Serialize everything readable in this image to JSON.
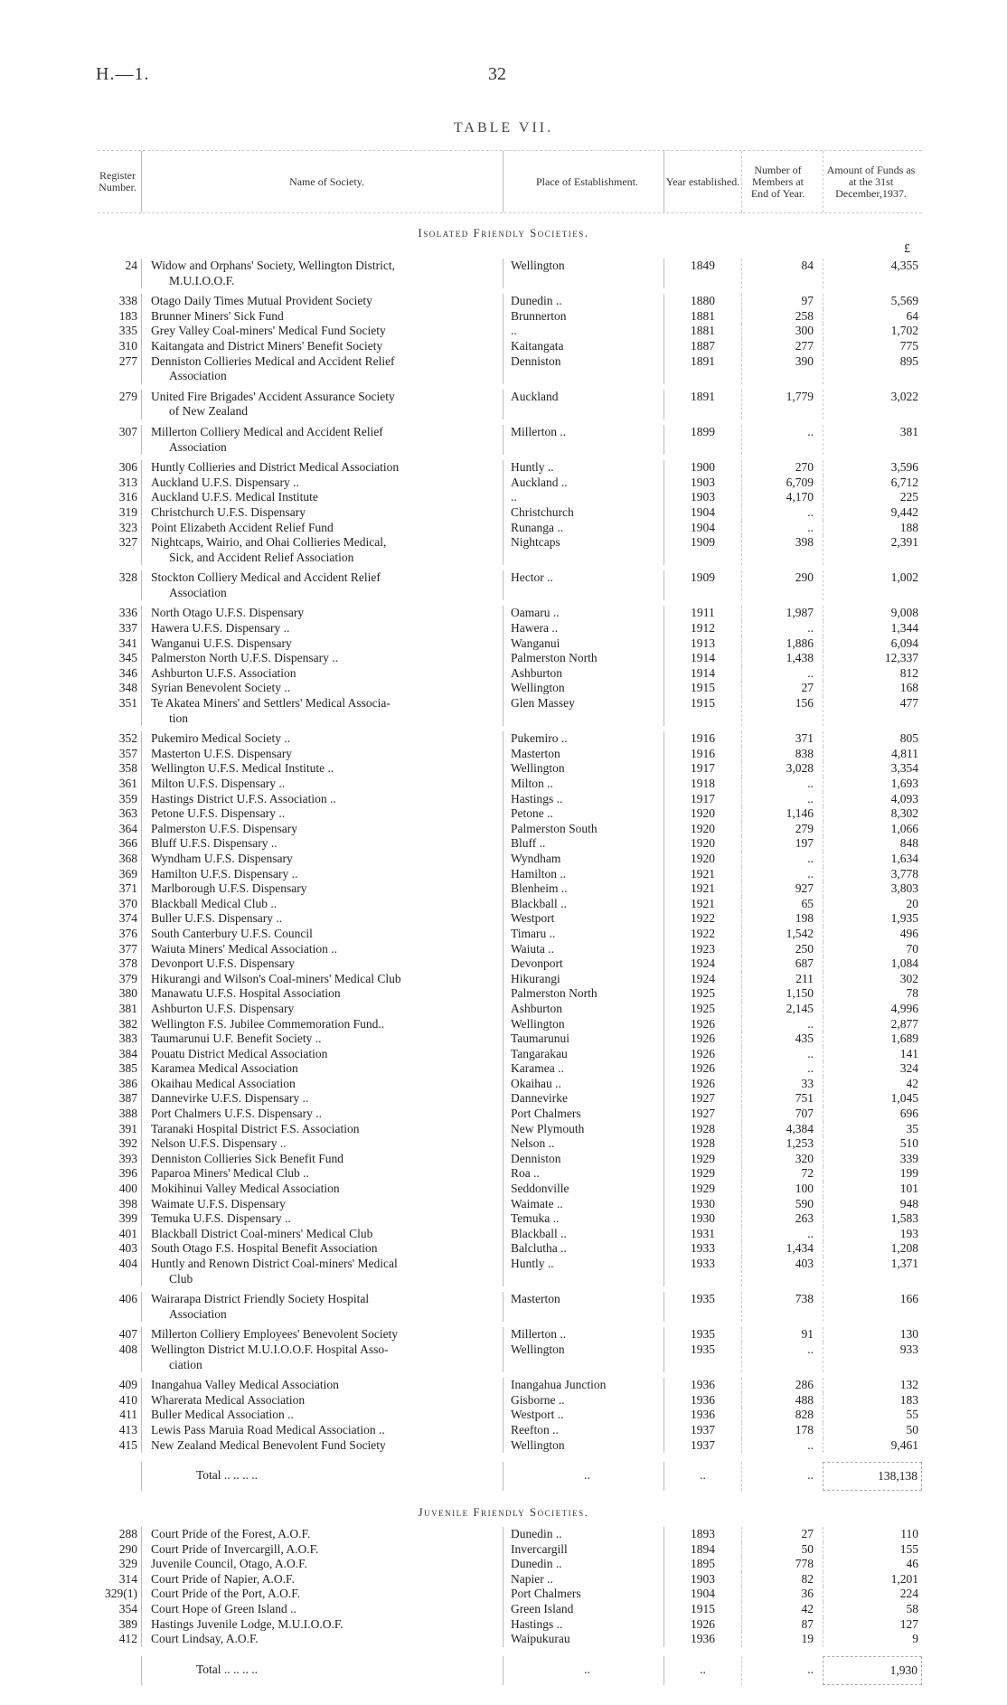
{
  "header": {
    "ref": "H.—1.",
    "page": "32",
    "title": "TABLE VII."
  },
  "columns": {
    "reg": "Register Number.",
    "name": "Name of Society.",
    "place": "Place of Establishment.",
    "year": "Year established.",
    "members": "Number of Members at End of Year.",
    "funds": "Amount of Funds as at the 31st December,1937."
  },
  "currency": "£",
  "isolated": {
    "heading": "Isolated Friendly Societies.",
    "rows": [
      {
        "reg": "24",
        "name": "Widow and Orphans' Society, Wellington District,",
        "cont": "M.U.I.O.O.F.",
        "place": "Wellington",
        "year": "1849",
        "members": "84",
        "funds": "4,355"
      },
      {
        "reg": "338",
        "name": "Otago Daily Times Mutual Provident Society",
        "place": "Dunedin ..",
        "year": "1880",
        "members": "97",
        "funds": "5,569"
      },
      {
        "reg": "183",
        "name": "Brunner Miners' Sick Fund",
        "place": "Brunnerton",
        "year": "1881",
        "members": "258",
        "funds": "64"
      },
      {
        "reg": "335",
        "name": "Grey Valley Coal-miners' Medical Fund Society",
        "place": "..",
        "year": "1881",
        "members": "300",
        "funds": "1,702"
      },
      {
        "reg": "310",
        "name": "Kaitangata and District Miners' Benefit Society",
        "place": "Kaitangata",
        "year": "1887",
        "members": "277",
        "funds": "775"
      },
      {
        "reg": "277",
        "name": "Denniston Collieries Medical and Accident Relief",
        "cont": "Association",
        "place": "Denniston",
        "year": "1891",
        "members": "390",
        "funds": "895"
      },
      {
        "reg": "279",
        "name": "United Fire Brigades' Accident Assurance Society",
        "cont": "of New Zealand",
        "place": "Auckland",
        "year": "1891",
        "members": "1,779",
        "funds": "3,022"
      },
      {
        "reg": "307",
        "name": "Millerton Colliery Medical and Accident Relief",
        "cont": "Association",
        "place": "Millerton ..",
        "year": "1899",
        "members": "..",
        "funds": "381"
      },
      {
        "reg": "306",
        "name": "Huntly Collieries and District Medical Association",
        "place": "Huntly ..",
        "year": "1900",
        "members": "270",
        "funds": "3,596"
      },
      {
        "reg": "313",
        "name": "Auckland U.F.S. Dispensary ..",
        "place": "Auckland ..",
        "year": "1903",
        "members": "6,709",
        "funds": "6,712"
      },
      {
        "reg": "316",
        "name": "Auckland U.F.S. Medical Institute",
        "place": "..",
        "year": "1903",
        "members": "4,170",
        "funds": "225"
      },
      {
        "reg": "319",
        "name": "Christchurch U.F.S. Dispensary",
        "place": "Christchurch",
        "year": "1904",
        "members": "..",
        "funds": "9,442"
      },
      {
        "reg": "323",
        "name": "Point Elizabeth Accident Relief Fund",
        "place": "Runanga ..",
        "year": "1904",
        "members": "..",
        "funds": "188"
      },
      {
        "reg": "327",
        "name": "Nightcaps, Wairio, and Ohai Collieries Medical,",
        "cont": "Sick, and Accident Relief Association",
        "place": "Nightcaps",
        "year": "1909",
        "members": "398",
        "funds": "2,391"
      },
      {
        "reg": "328",
        "name": "Stockton Colliery Medical and Accident Relief",
        "cont": "Association",
        "place": "Hector ..",
        "year": "1909",
        "members": "290",
        "funds": "1,002"
      },
      {
        "reg": "336",
        "name": "North Otago U.F.S. Dispensary",
        "place": "Oamaru ..",
        "year": "1911",
        "members": "1,987",
        "funds": "9,008"
      },
      {
        "reg": "337",
        "name": "Hawera U.F.S. Dispensary ..",
        "place": "Hawera ..",
        "year": "1912",
        "members": "..",
        "funds": "1,344"
      },
      {
        "reg": "341",
        "name": "Wanganui U.F.S. Dispensary",
        "place": "Wanganui",
        "year": "1913",
        "members": "1,886",
        "funds": "6,094"
      },
      {
        "reg": "345",
        "name": "Palmerston North U.F.S. Dispensary ..",
        "place": "Palmerston North",
        "year": "1914",
        "members": "1,438",
        "funds": "12,337"
      },
      {
        "reg": "346",
        "name": "Ashburton U.F.S. Association",
        "place": "Ashburton",
        "year": "1914",
        "members": "..",
        "funds": "812"
      },
      {
        "reg": "348",
        "name": "Syrian Benevolent Society ..",
        "place": "Wellington",
        "year": "1915",
        "members": "27",
        "funds": "168"
      },
      {
        "reg": "351",
        "name": "Te Akatea Miners' and Settlers' Medical Associa-",
        "cont": "tion",
        "place": "Glen Massey",
        "year": "1915",
        "members": "156",
        "funds": "477"
      },
      {
        "reg": "352",
        "name": "Pukemiro Medical Society ..",
        "place": "Pukemiro ..",
        "year": "1916",
        "members": "371",
        "funds": "805"
      },
      {
        "reg": "357",
        "name": "Masterton U.F.S. Dispensary",
        "place": "Masterton",
        "year": "1916",
        "members": "838",
        "funds": "4,811"
      },
      {
        "reg": "358",
        "name": "Wellington U.F.S. Medical Institute ..",
        "place": "Wellington",
        "year": "1917",
        "members": "3,028",
        "funds": "3,354"
      },
      {
        "reg": "361",
        "name": "Milton U.F.S. Dispensary ..",
        "place": "Milton ..",
        "year": "1918",
        "members": "..",
        "funds": "1,693"
      },
      {
        "reg": "359",
        "name": "Hastings District U.F.S. Association ..",
        "place": "Hastings ..",
        "year": "1917",
        "members": "..",
        "funds": "4,093"
      },
      {
        "reg": "363",
        "name": "Petone U.F.S. Dispensary ..",
        "place": "Petone ..",
        "year": "1920",
        "members": "1,146",
        "funds": "8,302"
      },
      {
        "reg": "364",
        "name": "Palmerston U.F.S. Dispensary",
        "place": "Palmerston South",
        "year": "1920",
        "members": "279",
        "funds": "1,066"
      },
      {
        "reg": "366",
        "name": "Bluff U.F.S. Dispensary ..",
        "place": "Bluff ..",
        "year": "1920",
        "members": "197",
        "funds": "848"
      },
      {
        "reg": "368",
        "name": "Wyndham U.F.S. Dispensary",
        "place": "Wyndham",
        "year": "1920",
        "members": "..",
        "funds": "1,634"
      },
      {
        "reg": "369",
        "name": "Hamilton U.F.S. Dispensary ..",
        "place": "Hamilton ..",
        "year": "1921",
        "members": "..",
        "funds": "3,778"
      },
      {
        "reg": "371",
        "name": "Marlborough U.F.S. Dispensary",
        "place": "Blenheim ..",
        "year": "1921",
        "members": "927",
        "funds": "3,803"
      },
      {
        "reg": "370",
        "name": "Blackball Medical Club ..",
        "place": "Blackball ..",
        "year": "1921",
        "members": "65",
        "funds": "20"
      },
      {
        "reg": "374",
        "name": "Buller U.F.S. Dispensary ..",
        "place": "Westport",
        "year": "1922",
        "members": "198",
        "funds": "1,935"
      },
      {
        "reg": "376",
        "name": "South Canterbury U.F.S. Council",
        "place": "Timaru ..",
        "year": "1922",
        "members": "1,542",
        "funds": "496"
      },
      {
        "reg": "377",
        "name": "Waiuta Miners' Medical Association ..",
        "place": "Waiuta ..",
        "year": "1923",
        "members": "250",
        "funds": "70"
      },
      {
        "reg": "378",
        "name": "Devonport U.F.S. Dispensary",
        "place": "Devonport",
        "year": "1924",
        "members": "687",
        "funds": "1,084"
      },
      {
        "reg": "379",
        "name": "Hikurangi and Wilson's Coal-miners' Medical Club",
        "place": "Hikurangi",
        "year": "1924",
        "members": "211",
        "funds": "302"
      },
      {
        "reg": "380",
        "name": "Manawatu U.F.S. Hospital Association",
        "place": "Palmerston North",
        "year": "1925",
        "members": "1,150",
        "funds": "78"
      },
      {
        "reg": "381",
        "name": "Ashburton U.F.S. Dispensary",
        "place": "Ashburton",
        "year": "1925",
        "members": "2,145",
        "funds": "4,996"
      },
      {
        "reg": "382",
        "name": "Wellington F.S. Jubilee Commemoration Fund..",
        "place": "Wellington",
        "year": "1926",
        "members": "..",
        "funds": "2,877"
      },
      {
        "reg": "383",
        "name": "Taumarunui U.F. Benefit Society ..",
        "place": "Taumarunui",
        "year": "1926",
        "members": "435",
        "funds": "1,689"
      },
      {
        "reg": "384",
        "name": "Pouatu District Medical Association",
        "place": "Tangarakau",
        "year": "1926",
        "members": "..",
        "funds": "141"
      },
      {
        "reg": "385",
        "name": "Karamea Medical Association",
        "place": "Karamea ..",
        "year": "1926",
        "members": "..",
        "funds": "324"
      },
      {
        "reg": "386",
        "name": "Okaihau Medical Association",
        "place": "Okaihau ..",
        "year": "1926",
        "members": "33",
        "funds": "42"
      },
      {
        "reg": "387",
        "name": "Dannevirke U.F.S. Dispensary ..",
        "place": "Dannevirke",
        "year": "1927",
        "members": "751",
        "funds": "1,045"
      },
      {
        "reg": "388",
        "name": "Port Chalmers U.F.S. Dispensary ..",
        "place": "Port Chalmers",
        "year": "1927",
        "members": "707",
        "funds": "696"
      },
      {
        "reg": "391",
        "name": "Taranaki Hospital District F.S. Association",
        "place": "New Plymouth",
        "year": "1928",
        "members": "4,384",
        "funds": "35"
      },
      {
        "reg": "392",
        "name": "Nelson U.F.S. Dispensary ..",
        "place": "Nelson ..",
        "year": "1928",
        "members": "1,253",
        "funds": "510"
      },
      {
        "reg": "393",
        "name": "Denniston Collieries Sick Benefit Fund",
        "place": "Denniston",
        "year": "1929",
        "members": "320",
        "funds": "339"
      },
      {
        "reg": "396",
        "name": "Paparoa Miners' Medical Club ..",
        "place": "Roa ..",
        "year": "1929",
        "members": "72",
        "funds": "199"
      },
      {
        "reg": "400",
        "name": "Mokihinui Valley Medical Association",
        "place": "Seddonville",
        "year": "1929",
        "members": "100",
        "funds": "101"
      },
      {
        "reg": "398",
        "name": "Waimate U.F.S. Dispensary",
        "place": "Waimate ..",
        "year": "1930",
        "members": "590",
        "funds": "948"
      },
      {
        "reg": "399",
        "name": "Temuka U.F.S. Dispensary ..",
        "place": "Temuka ..",
        "year": "1930",
        "members": "263",
        "funds": "1,583"
      },
      {
        "reg": "401",
        "name": "Blackball District Coal-miners' Medical Club",
        "place": "Blackball ..",
        "year": "1931",
        "members": "..",
        "funds": "193"
      },
      {
        "reg": "403",
        "name": "South Otago F.S. Hospital Benefit Association",
        "place": "Balclutha ..",
        "year": "1933",
        "members": "1,434",
        "funds": "1,208"
      },
      {
        "reg": "404",
        "name": "Huntly and Renown District Coal-miners' Medical",
        "cont": "Club",
        "place": "Huntly ..",
        "year": "1933",
        "members": "403",
        "funds": "1,371"
      },
      {
        "reg": "406",
        "name": "Wairarapa District Friendly Society Hospital",
        "cont": "Association",
        "place": "Masterton",
        "year": "1935",
        "members": "738",
        "funds": "166"
      },
      {
        "reg": "407",
        "name": "Millerton Colliery Employees' Benevolent Society",
        "place": "Millerton ..",
        "year": "1935",
        "members": "91",
        "funds": "130"
      },
      {
        "reg": "408",
        "name": "Wellington District M.U.I.O.O.F. Hospital Asso-",
        "cont": "ciation",
        "place": "Wellington",
        "year": "1935",
        "members": "..",
        "funds": "933"
      },
      {
        "reg": "409",
        "name": "Inangahua Valley Medical Association",
        "place": "Inangahua Junction",
        "year": "1936",
        "members": "286",
        "funds": "132"
      },
      {
        "reg": "410",
        "name": "Wharerata Medical Association",
        "place": "Gisborne ..",
        "year": "1936",
        "members": "488",
        "funds": "183"
      },
      {
        "reg": "411",
        "name": "Buller Medical Association ..",
        "place": "Westport ..",
        "year": "1936",
        "members": "828",
        "funds": "55"
      },
      {
        "reg": "413",
        "name": "Lewis Pass Maruia Road Medical Association ..",
        "place": "Reefton ..",
        "year": "1937",
        "members": "178",
        "funds": "50"
      },
      {
        "reg": "415",
        "name": "New Zealand Medical Benevolent Fund Society",
        "place": "Wellington",
        "year": "1937",
        "members": "..",
        "funds": "9,461"
      }
    ],
    "total": {
      "label": "Total .. .. .. ..",
      "place": "..",
      "year": "..",
      "members": "..",
      "funds": "138,138"
    }
  },
  "juvenile": {
    "heading": "Juvenile Friendly Societies.",
    "rows": [
      {
        "reg": "288",
        "name": "Court Pride of the Forest, A.O.F.",
        "place": "Dunedin ..",
        "year": "1893",
        "members": "27",
        "funds": "110"
      },
      {
        "reg": "290",
        "name": "Court Pride of Invercargill, A.O.F.",
        "place": "Invercargill",
        "year": "1894",
        "members": "50",
        "funds": "155"
      },
      {
        "reg": "329",
        "name": "Juvenile Council, Otago, A.O.F.",
        "place": "Dunedin ..",
        "year": "1895",
        "members": "778",
        "funds": "46"
      },
      {
        "reg": "314",
        "name": "Court Pride of Napier, A.O.F.",
        "place": "Napier ..",
        "year": "1903",
        "members": "82",
        "funds": "1,201"
      },
      {
        "reg": "329(1)",
        "name": "Court Pride of the Port, A.O.F.",
        "place": "Port Chalmers",
        "year": "1904",
        "members": "36",
        "funds": "224"
      },
      {
        "reg": "354",
        "name": "Court Hope of Green Island ..",
        "place": "Green Island",
        "year": "1915",
        "members": "42",
        "funds": "58"
      },
      {
        "reg": "389",
        "name": "Hastings Juvenile Lodge, M.U.I.O.O.F.",
        "place": "Hastings ..",
        "year": "1926",
        "members": "87",
        "funds": "127"
      },
      {
        "reg": "412",
        "name": "Court Lindsay, A.O.F.",
        "place": "Waipukurau",
        "year": "1936",
        "members": "19",
        "funds": "9"
      }
    ],
    "total": {
      "label": "Total .. .. .. ..",
      "place": "..",
      "year": "..",
      "members": "..",
      "funds": "1,930"
    }
  }
}
